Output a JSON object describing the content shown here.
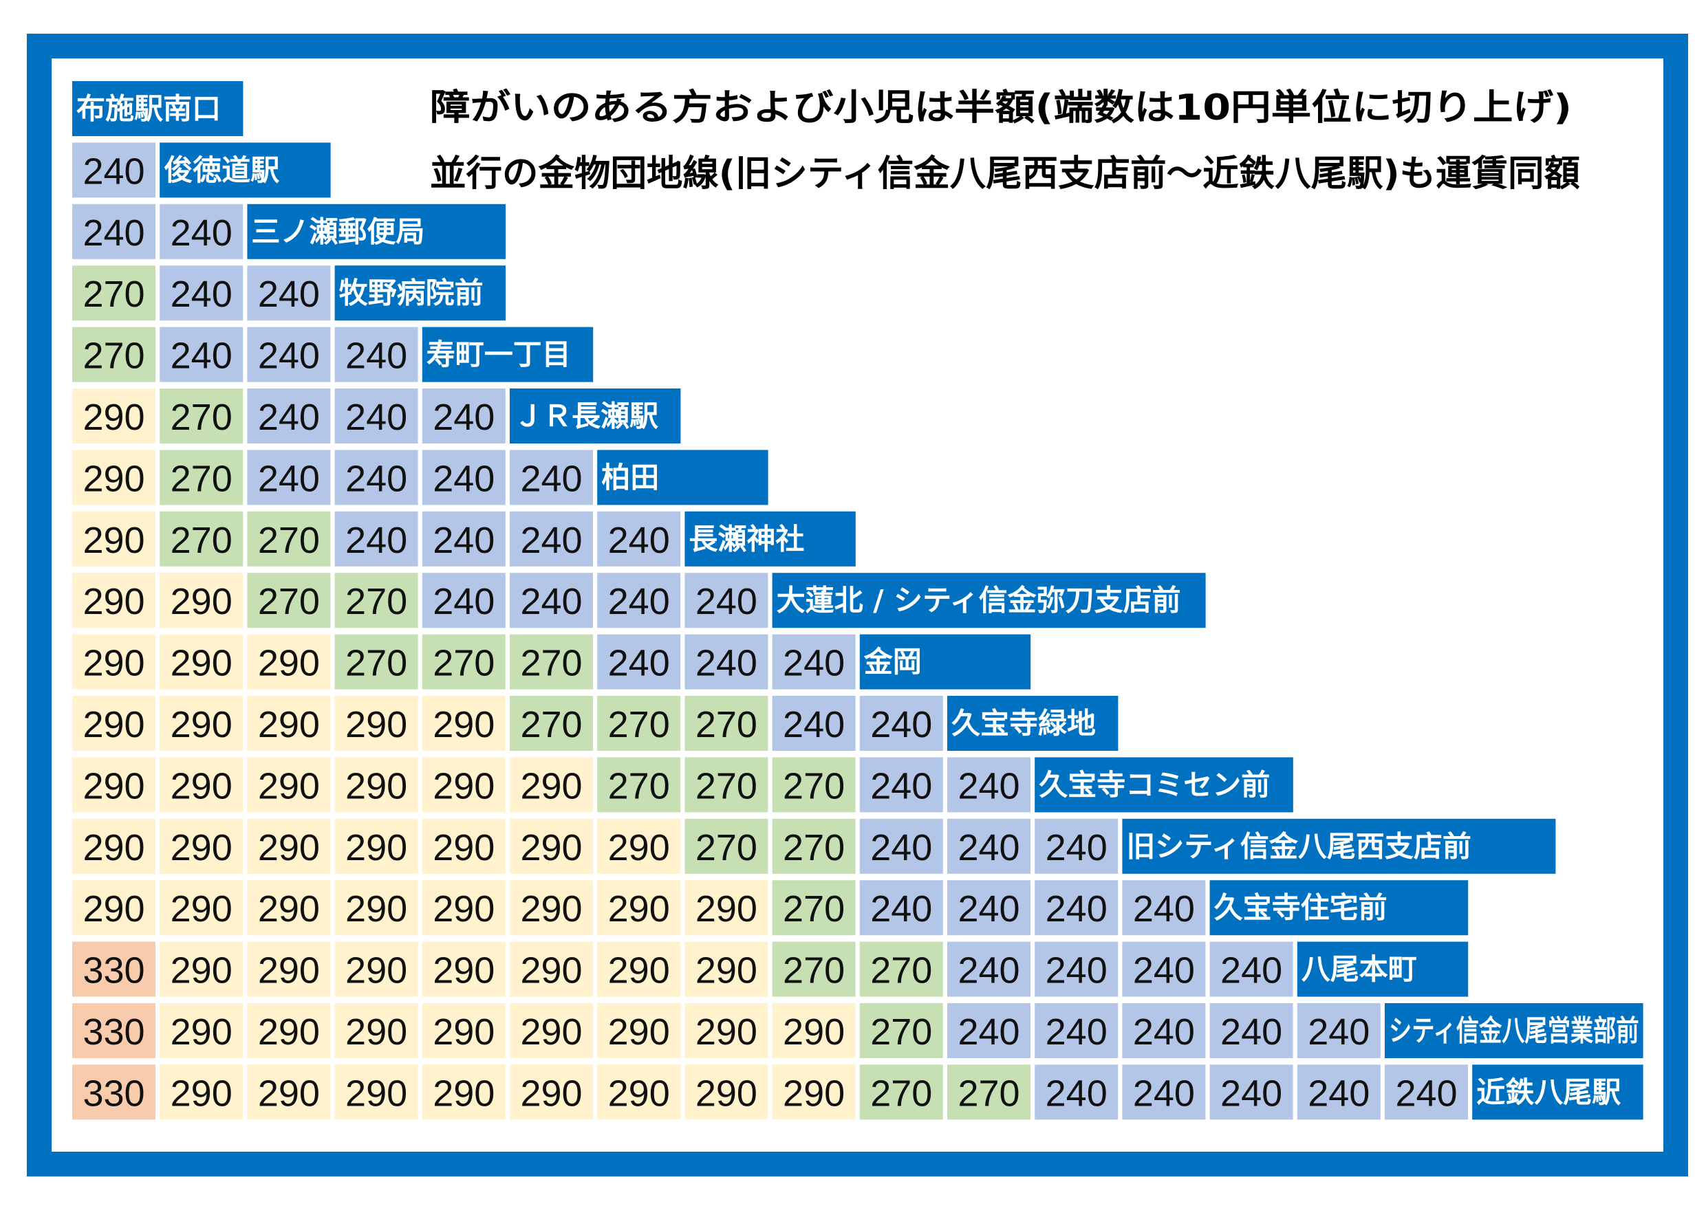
{
  "header": {
    "lines": [
      "障がいのある方および小児は半額(端数は10円単位に切り上げ)",
      "並行の金物団地線(旧シティ信金八尾西支店前～近鉄八尾駅)も運賃同額"
    ]
  },
  "table": {
    "stations": [
      "布施駅南口",
      "俊徳道駅",
      "三ノ瀬郵便局",
      "牧野病院前",
      "寿町一丁目",
      "ＪＲ長瀬駅",
      "柏田",
      "長瀬神社",
      "大蓮北 / シティ信金弥刀支店前",
      "金岡",
      "久宝寺緑地",
      "久宝寺コミセン前",
      "旧シティ信金八尾西支店前",
      "久宝寺住宅前",
      "八尾本町",
      "シティ信金八尾営業部前",
      "近鉄八尾駅"
    ],
    "fares": [
      [
        240
      ],
      [
        240,
        240
      ],
      [
        270,
        240,
        240
      ],
      [
        270,
        240,
        240,
        240
      ],
      [
        290,
        270,
        240,
        240,
        240
      ],
      [
        290,
        270,
        240,
        240,
        240,
        240
      ],
      [
        290,
        270,
        270,
        240,
        240,
        240,
        240
      ],
      [
        290,
        290,
        270,
        270,
        240,
        240,
        240,
        240
      ],
      [
        290,
        290,
        290,
        270,
        270,
        270,
        240,
        240,
        240
      ],
      [
        290,
        290,
        290,
        290,
        290,
        270,
        270,
        270,
        240,
        240
      ],
      [
        290,
        290,
        290,
        290,
        290,
        290,
        270,
        270,
        270,
        240,
        240
      ],
      [
        290,
        290,
        290,
        290,
        290,
        290,
        290,
        270,
        270,
        240,
        240,
        240
      ],
      [
        290,
        290,
        290,
        290,
        290,
        290,
        290,
        290,
        270,
        240,
        240,
        240,
        240
      ],
      [
        330,
        290,
        290,
        290,
        290,
        290,
        290,
        290,
        270,
        270,
        240,
        240,
        240,
        240
      ],
      [
        330,
        290,
        290,
        290,
        290,
        290,
        290,
        290,
        290,
        270,
        240,
        240,
        240,
        240,
        240
      ],
      [
        330,
        290,
        290,
        290,
        290,
        290,
        290,
        290,
        290,
        270,
        270,
        240,
        240,
        240,
        240,
        240
      ]
    ],
    "fare_colors": {
      "240": "#b4c6e7",
      "270": "#c6e0b4",
      "290": "#fff2cc",
      "330": "#f8cbad"
    },
    "station_color": "#0070c0"
  }
}
